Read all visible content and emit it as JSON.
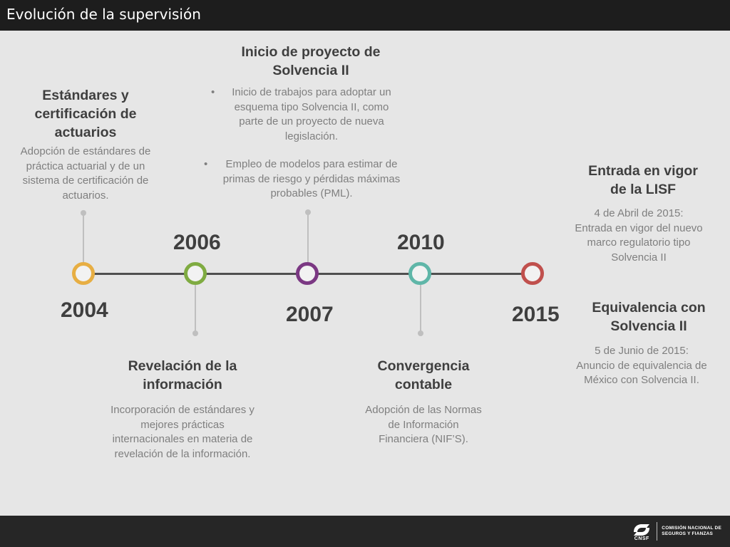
{
  "header": {
    "title": "Evolución de la supervisión"
  },
  "colors": {
    "title_bar": "#1d1d1d",
    "background": "#e6e6e6",
    "line": "#4f4f4f",
    "node_2004": "#e7ae43",
    "node_2006": "#7fab41",
    "node_2007": "#7b3883",
    "node_2010": "#5fb6a8",
    "node_2015": "#c0504d"
  },
  "milestones": {
    "m2004": {
      "year": "2004",
      "heading": [
        "Estándares y",
        "certificación de",
        "actuarios"
      ],
      "text": [
        "Adopción de estándares de",
        "práctica actuarial y de un",
        "sistema de certificación de",
        "actuarios."
      ]
    },
    "m2006": {
      "year": "2006",
      "heading": [
        "Revelación de la",
        "información"
      ],
      "text": [
        "Incorporación de estándares y",
        "mejores prácticas",
        "internacionales en materia de",
        "revelación de la información."
      ]
    },
    "m2007": {
      "year": "2007",
      "heading": [
        "Inicio de proyecto de",
        "Solvencia II"
      ],
      "bullets": [
        {
          "marker": "•",
          "lines": [
            "Inicio de trabajos para adoptar un",
            "esquema tipo Solvencia II, como",
            "parte de un proyecto de nueva",
            "legislación."
          ]
        },
        {
          "marker": "•",
          "lines": [
            "Empleo de modelos para estimar de",
            "primas de riesgo y pérdidas máximas",
            "probables (PML)."
          ]
        }
      ]
    },
    "m2010": {
      "year": "2010",
      "heading": [
        "Convergencia",
        "contable"
      ],
      "text": [
        "Adopción de las Normas",
        "de Información",
        "Financiera (NIF’S)."
      ]
    },
    "m2015": {
      "year": "2015",
      "heading_a": [
        "Entrada en vigor",
        "de la LISF"
      ],
      "text_a": [
        "4 de Abril de 2015:",
        "Entrada en vigor del nuevo",
        "marco regulatorio tipo",
        "Solvencia II"
      ],
      "heading_b": [
        "Equivalencia con",
        "Solvencia II"
      ],
      "text_b": [
        "5 de Junio de 2015:",
        "Anuncio de equivalencia de",
        "México con Solvencia II."
      ]
    }
  },
  "footer": {
    "logo_icon": "cnsf-logo-icon",
    "logo_mark": "CNSF",
    "logo_lines": [
      "COMISIÓN NACIONAL DE",
      "SEGUROS Y FIANZAS"
    ]
  }
}
